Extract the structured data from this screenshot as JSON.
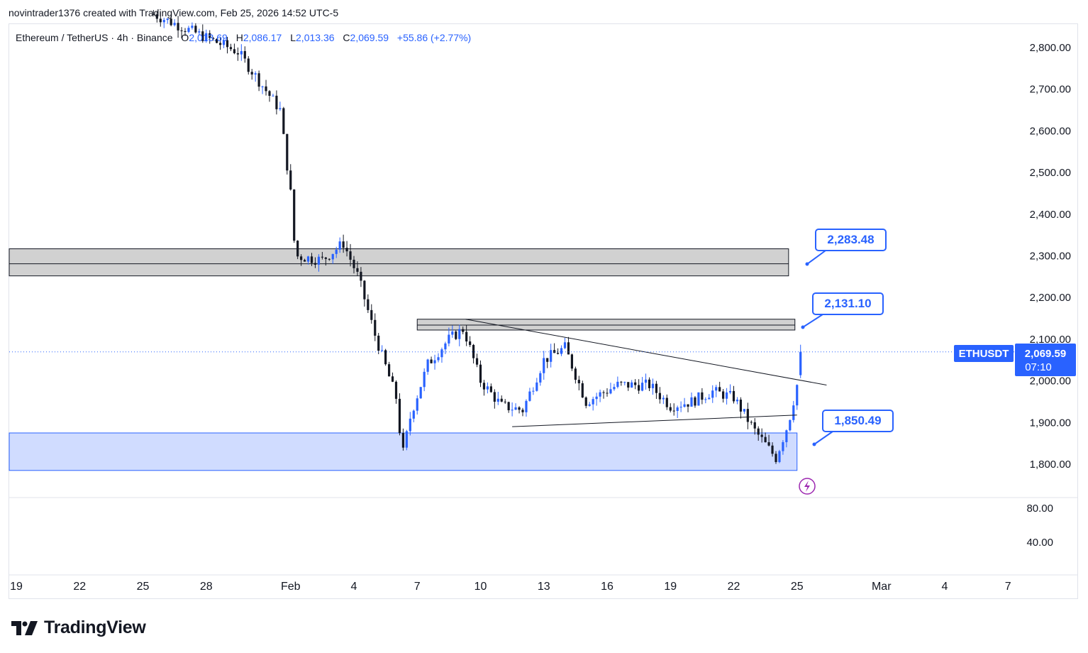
{
  "header": {
    "created_by": "novintrader1376 created with TradingView.com, Feb 25, 2026 14:52 UTC-5"
  },
  "legend": {
    "symbol": "Ethereum / TetherUS · 4h · Binance",
    "open_label": "O",
    "open_value": "2,013.69",
    "high_label": "H",
    "high_value": "2,086.17",
    "low_label": "L",
    "low_value": "2,013.36",
    "close_label": "C",
    "close_value": "2,069.59",
    "change": "+55.86 (+2.77%)"
  },
  "price_tag": {
    "ticker": "ETHUSDT",
    "price": "2,069.59",
    "countdown": "07:10"
  },
  "annotations": [
    {
      "text": "2,283.48",
      "price": 2283.48
    },
    {
      "text": "2,131.10",
      "price": 2131.1
    },
    {
      "text": "1,850.49",
      "price": 1850.49
    }
  ],
  "brand": {
    "name": "TradingView"
  },
  "colors": {
    "up": "#2962ff",
    "down": "#131722",
    "accent": "#2962ff",
    "zone_gray": "#d1d1d1",
    "zone_blue": "#d0dcff"
  },
  "chart_data": {
    "type": "candlestick",
    "symbol": "ETHUSDT",
    "interval": "4h",
    "exchange": "Binance",
    "ylim": [
      1750,
      2880
    ],
    "y_ticks": [
      "2,800.00",
      "2,700.00",
      "2,600.00",
      "2,500.00",
      "2,400.00",
      "2,300.00",
      "2,200.00",
      "2,100.00",
      "2,000.00",
      "1,900.00",
      "1,800.00"
    ],
    "y_tick_values": [
      2800,
      2700,
      2600,
      2500,
      2400,
      2300,
      2200,
      2100,
      2000,
      1900,
      1800
    ],
    "x_ticks": [
      {
        "label": "19",
        "day": 0
      },
      {
        "label": "22",
        "day": 3
      },
      {
        "label": "25",
        "day": 6
      },
      {
        "label": "28",
        "day": 9
      },
      {
        "label": "Feb",
        "day": 13
      },
      {
        "label": "4",
        "day": 16
      },
      {
        "label": "7",
        "day": 19
      },
      {
        "label": "10",
        "day": 22
      },
      {
        "label": "13",
        "day": 25
      },
      {
        "label": "16",
        "day": 28
      },
      {
        "label": "19",
        "day": 31
      },
      {
        "label": "22",
        "day": 34
      },
      {
        "label": "25",
        "day": 37
      },
      {
        "label": "Mar",
        "day": 41
      },
      {
        "label": "4",
        "day": 44
      },
      {
        "label": "7",
        "day": 47
      }
    ],
    "x_axis_start": "2026-01-19",
    "volume_ticks": [
      "80.00",
      "40.00"
    ],
    "zones": [
      {
        "name": "resistance-zone-upper",
        "from_day": 0,
        "to_day": 36.6,
        "low": 2252,
        "high": 2317,
        "mid": 2281,
        "color": "gray"
      },
      {
        "name": "resistance-zone-lower",
        "from_day": 19,
        "to_day": 36.9,
        "low": 2122,
        "high": 2148,
        "mid": 2134,
        "color": "gray"
      },
      {
        "name": "support-zone",
        "from_day": 0,
        "to_day": 37,
        "low": 1785,
        "high": 1875,
        "color": "blue"
      }
    ],
    "trendlines": [
      {
        "name": "descending-trendline",
        "from": {
          "day": 21.3,
          "price": 2148
        },
        "to": {
          "day": 38.4,
          "price": 1990
        }
      },
      {
        "name": "ascending-trendline",
        "from": {
          "day": 23.5,
          "price": 1890
        },
        "to": {
          "day": 37.0,
          "price": 1918
        }
      }
    ],
    "current_price": 2069.59,
    "key_points": [
      {
        "day": 6.5,
        "price": 2880
      },
      {
        "day": 10.5,
        "price": 2790
      },
      {
        "day": 12.5,
        "price": 2650
      },
      {
        "day": 13.1,
        "price": 2410
      },
      {
        "day": 13.2,
        "price": 2300
      },
      {
        "day": 14.5,
        "price": 2290
      },
      {
        "day": 15.5,
        "price": 2330
      },
      {
        "day": 16.2,
        "price": 2250
      },
      {
        "day": 17.0,
        "price": 2110
      },
      {
        "day": 18.0,
        "price": 1960
      },
      {
        "day": 18.3,
        "price": 1820
      },
      {
        "day": 18.7,
        "price": 1920
      },
      {
        "day": 19.5,
        "price": 2040
      },
      {
        "day": 20.5,
        "price": 2100
      },
      {
        "day": 21.2,
        "price": 2125
      },
      {
        "day": 22.0,
        "price": 2000
      },
      {
        "day": 23.0,
        "price": 1940
      },
      {
        "day": 24.0,
        "price": 1930
      },
      {
        "day": 25.0,
        "price": 2050
      },
      {
        "day": 26.0,
        "price": 2080
      },
      {
        "day": 27.0,
        "price": 1950
      },
      {
        "day": 28.5,
        "price": 1990
      },
      {
        "day": 30.0,
        "price": 1990
      },
      {
        "day": 31.0,
        "price": 1940
      },
      {
        "day": 32.0,
        "price": 1950
      },
      {
        "day": 33.0,
        "price": 1975
      },
      {
        "day": 34.0,
        "price": 1960
      },
      {
        "day": 35.0,
        "price": 1880
      },
      {
        "day": 36.0,
        "price": 1815
      },
      {
        "day": 36.6,
        "price": 1900
      },
      {
        "day": 37.0,
        "price": 1990
      },
      {
        "day": 37.3,
        "price": 2069.59
      }
    ]
  }
}
